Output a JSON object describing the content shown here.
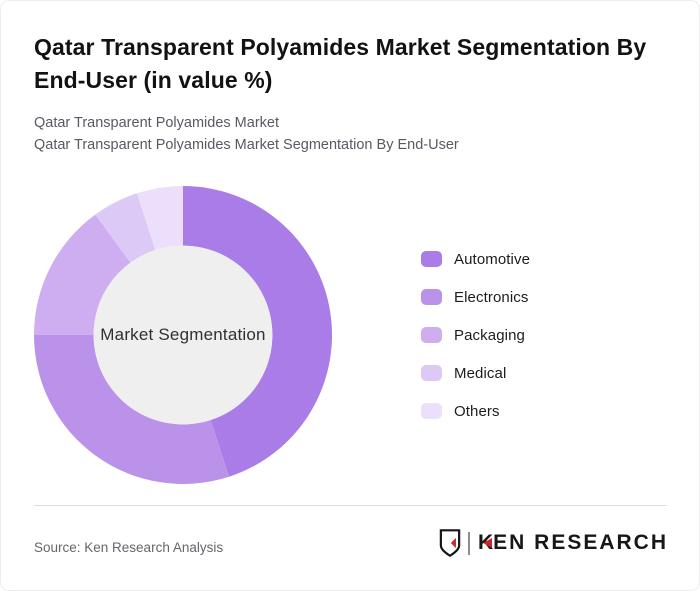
{
  "header": {
    "title": "Qatar Transparent Polyamides Market Segmentation By End-User (in value %)",
    "subtitle_line1": "Qatar Transparent Polyamides Market",
    "subtitle_line2": "Qatar Transparent Polyamides Market Segmentation By End-User"
  },
  "chart_data": {
    "type": "pie",
    "subtype": "donut",
    "title": "Qatar Transparent Polyamides Market Segmentation By End-User (in value %)",
    "center_label": "Market Segmentation",
    "categories": [
      "Automotive",
      "Electronics",
      "Packaging",
      "Medical",
      "Others"
    ],
    "values": [
      45,
      30,
      15,
      5,
      5
    ],
    "unit": "%",
    "colors": [
      "#a97ce7",
      "#bb92ea",
      "#cfadf1",
      "#ddc9f6",
      "#ecdffb"
    ],
    "start_angle_deg": 0,
    "inner_radius_ratio": 0.6,
    "inner_circle_color": "#efeff0",
    "legend_position": "right",
    "data_labels_shown": false
  },
  "footer": {
    "source": "Source: Ken Research Analysis",
    "logo_shield_letter": "K",
    "logo_text_k": "K",
    "logo_text_rest": "EN RESEARCH",
    "logo_accent_color": "#c9252c"
  }
}
